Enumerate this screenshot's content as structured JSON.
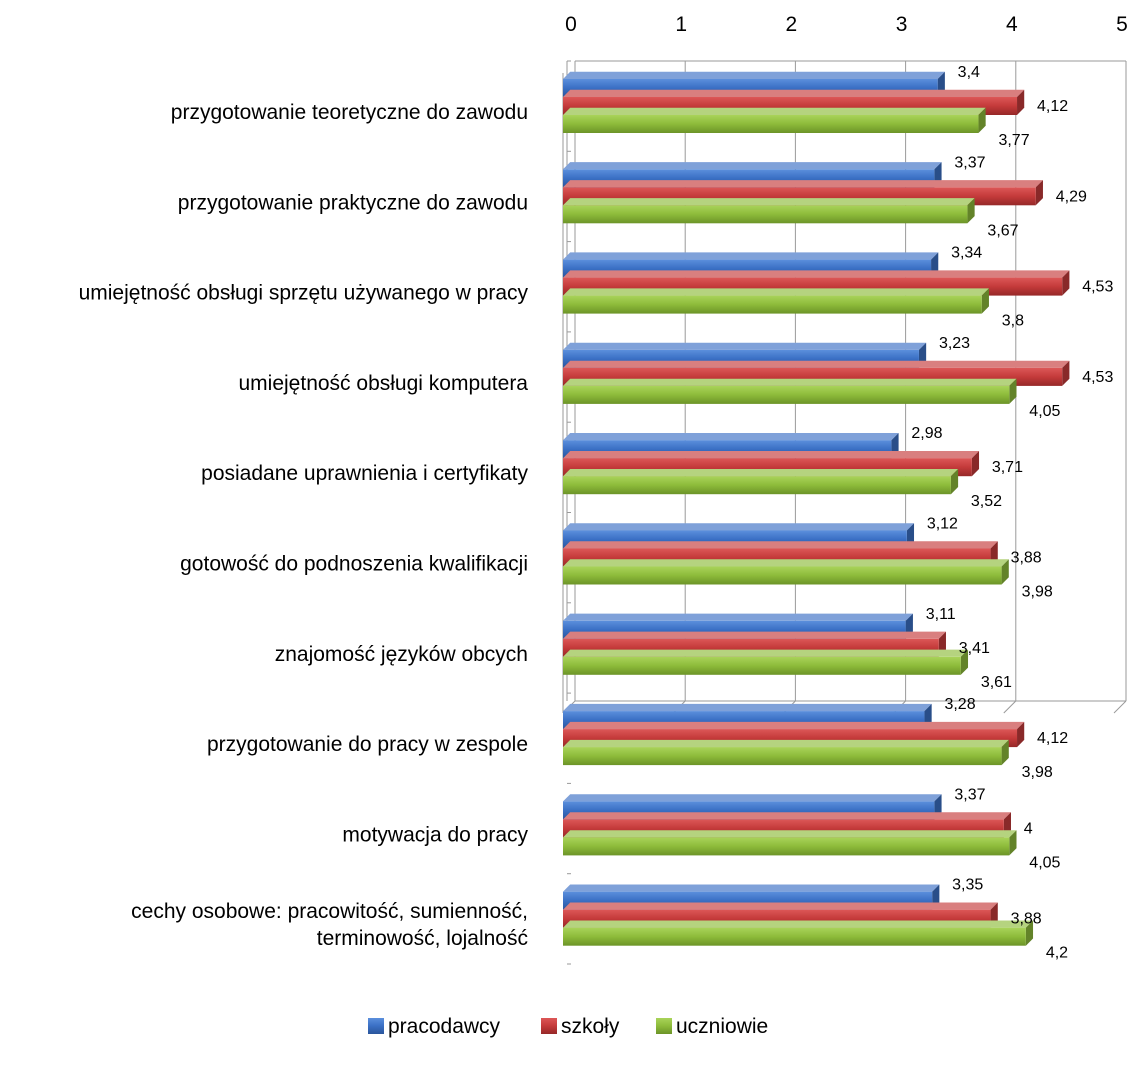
{
  "chart_data": {
    "type": "bar",
    "orientation": "horizontal",
    "categories": [
      [
        "przygotowanie teoretyczne do zawodu"
      ],
      [
        "przygotowanie praktyczne do zawodu"
      ],
      [
        "umiejętność obsługi sprzętu używanego w pracy"
      ],
      [
        "umiejętność obsługi komputera"
      ],
      [
        "posiadane uprawnienia i certyfikaty"
      ],
      [
        "gotowość do podnoszenia kwalifikacji"
      ],
      [
        "znajomość języków obcych"
      ],
      [
        "przygotowanie do pracy w zespole"
      ],
      [
        "motywacja do pracy"
      ],
      [
        "cechy osobowe: pracowitość, sumienność,",
        "terminowość, lojalność"
      ]
    ],
    "series": [
      {
        "name": "pracodawcy",
        "color": "#3a6fc4",
        "values": [
          3.4,
          3.37,
          3.34,
          3.23,
          2.98,
          3.12,
          3.11,
          3.28,
          3.37,
          3.35
        ],
        "labels": [
          "3,4",
          "3,37",
          "3,34",
          "3,23",
          "2,98",
          "3,12",
          "3,11",
          "3,28",
          "3,37",
          "3,35"
        ]
      },
      {
        "name": "szkoły",
        "color": "#c43a3a",
        "values": [
          4.12,
          4.29,
          4.53,
          4.53,
          3.71,
          3.88,
          3.41,
          4.12,
          4.0,
          3.88
        ],
        "labels": [
          "4,12",
          "4,29",
          "4,53",
          "4,53",
          "3,71",
          "3,88",
          "3,41",
          "4,12",
          "4",
          "3,88"
        ]
      },
      {
        "name": "uczniowie",
        "color": "#8dbb3a",
        "values": [
          3.77,
          3.67,
          3.8,
          4.05,
          3.52,
          3.98,
          3.61,
          3.98,
          4.05,
          4.2
        ],
        "labels": [
          "3,77",
          "3,67",
          "3,8",
          "4,05",
          "3,52",
          "3,98",
          "3,61",
          "3,98",
          "4,05",
          "4,2"
        ]
      }
    ],
    "xlim": [
      0,
      5
    ],
    "xticks": [
      "0",
      "1",
      "2",
      "3",
      "4",
      "5"
    ],
    "axis_position": "top",
    "legend_position": "bottom",
    "style": "3d-bars",
    "grid": true
  }
}
